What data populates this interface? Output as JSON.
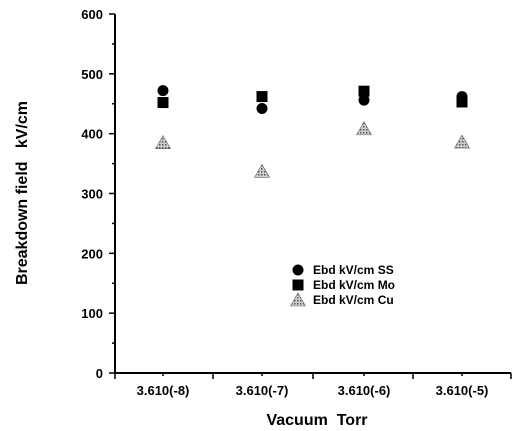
{
  "chart_data": {
    "type": "scatter",
    "xlabel": "Vacuum  Torr",
    "ylabel": "Breakdown field   kV/cm",
    "categories": [
      "3.610(-8)",
      "3.610(-7)",
      "3.610(-6)",
      "3.610(-5)"
    ],
    "ylim": [
      0,
      600
    ],
    "yticks": [
      0,
      100,
      200,
      300,
      400,
      500,
      600
    ],
    "grid": false,
    "legend_position": "lower-right",
    "series": [
      {
        "name": "Ebd kV/cm SS",
        "marker": "circle",
        "color": "#000000",
        "values": [
          472,
          442,
          456,
          462
        ]
      },
      {
        "name": "Ebd kV/cm Mo",
        "marker": "square",
        "color": "#000000",
        "values": [
          452,
          462,
          471,
          453
        ]
      },
      {
        "name": "Ebd kV/cm Cu",
        "marker": "triangle",
        "color": "#9a9a9a",
        "values": [
          385,
          337,
          408,
          386
        ]
      }
    ]
  }
}
